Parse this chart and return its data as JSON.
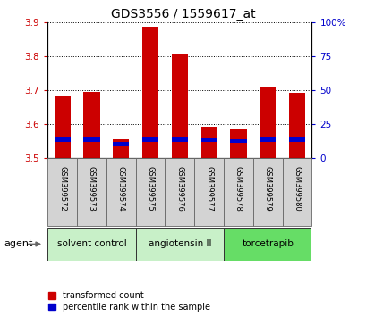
{
  "title": "GDS3556 / 1559617_at",
  "samples": [
    "GSM399572",
    "GSM399573",
    "GSM399574",
    "GSM399575",
    "GSM399576",
    "GSM399577",
    "GSM399578",
    "GSM399579",
    "GSM399580"
  ],
  "transformed_count": [
    3.685,
    3.695,
    3.555,
    3.885,
    3.808,
    3.592,
    3.588,
    3.71,
    3.692
  ],
  "percentile_rank": [
    13.5,
    13.5,
    10.0,
    13.5,
    13.5,
    13.0,
    12.5,
    13.5,
    13.5
  ],
  "bar_base": 3.5,
  "ylim_left": [
    3.5,
    3.9
  ],
  "ylim_right": [
    0,
    100
  ],
  "yticks_left": [
    3.5,
    3.6,
    3.7,
    3.8,
    3.9
  ],
  "yticks_right": [
    0,
    25,
    50,
    75,
    100
  ],
  "ytick_labels_right": [
    "0",
    "25",
    "50",
    "75",
    "100%"
  ],
  "groups": [
    {
      "label": "solvent control",
      "indices": [
        0,
        1,
        2
      ],
      "color": "#c8f0c8"
    },
    {
      "label": "angiotensin II",
      "indices": [
        3,
        4,
        5
      ],
      "color": "#c8f0c8"
    },
    {
      "label": "torcetrapib",
      "indices": [
        6,
        7,
        8
      ],
      "color": "#66dd66"
    }
  ],
  "bar_color_red": "#CC0000",
  "bar_color_blue": "#0000CC",
  "bar_width": 0.55,
  "left_tick_color": "#CC0000",
  "right_tick_color": "#0000CC",
  "agent_label": "agent",
  "legend_red": "transformed count",
  "legend_blue": "percentile rank within the sample",
  "background_plot": "#ffffff",
  "background_xtick": "#d3d3d3",
  "grid_color": "#000000"
}
